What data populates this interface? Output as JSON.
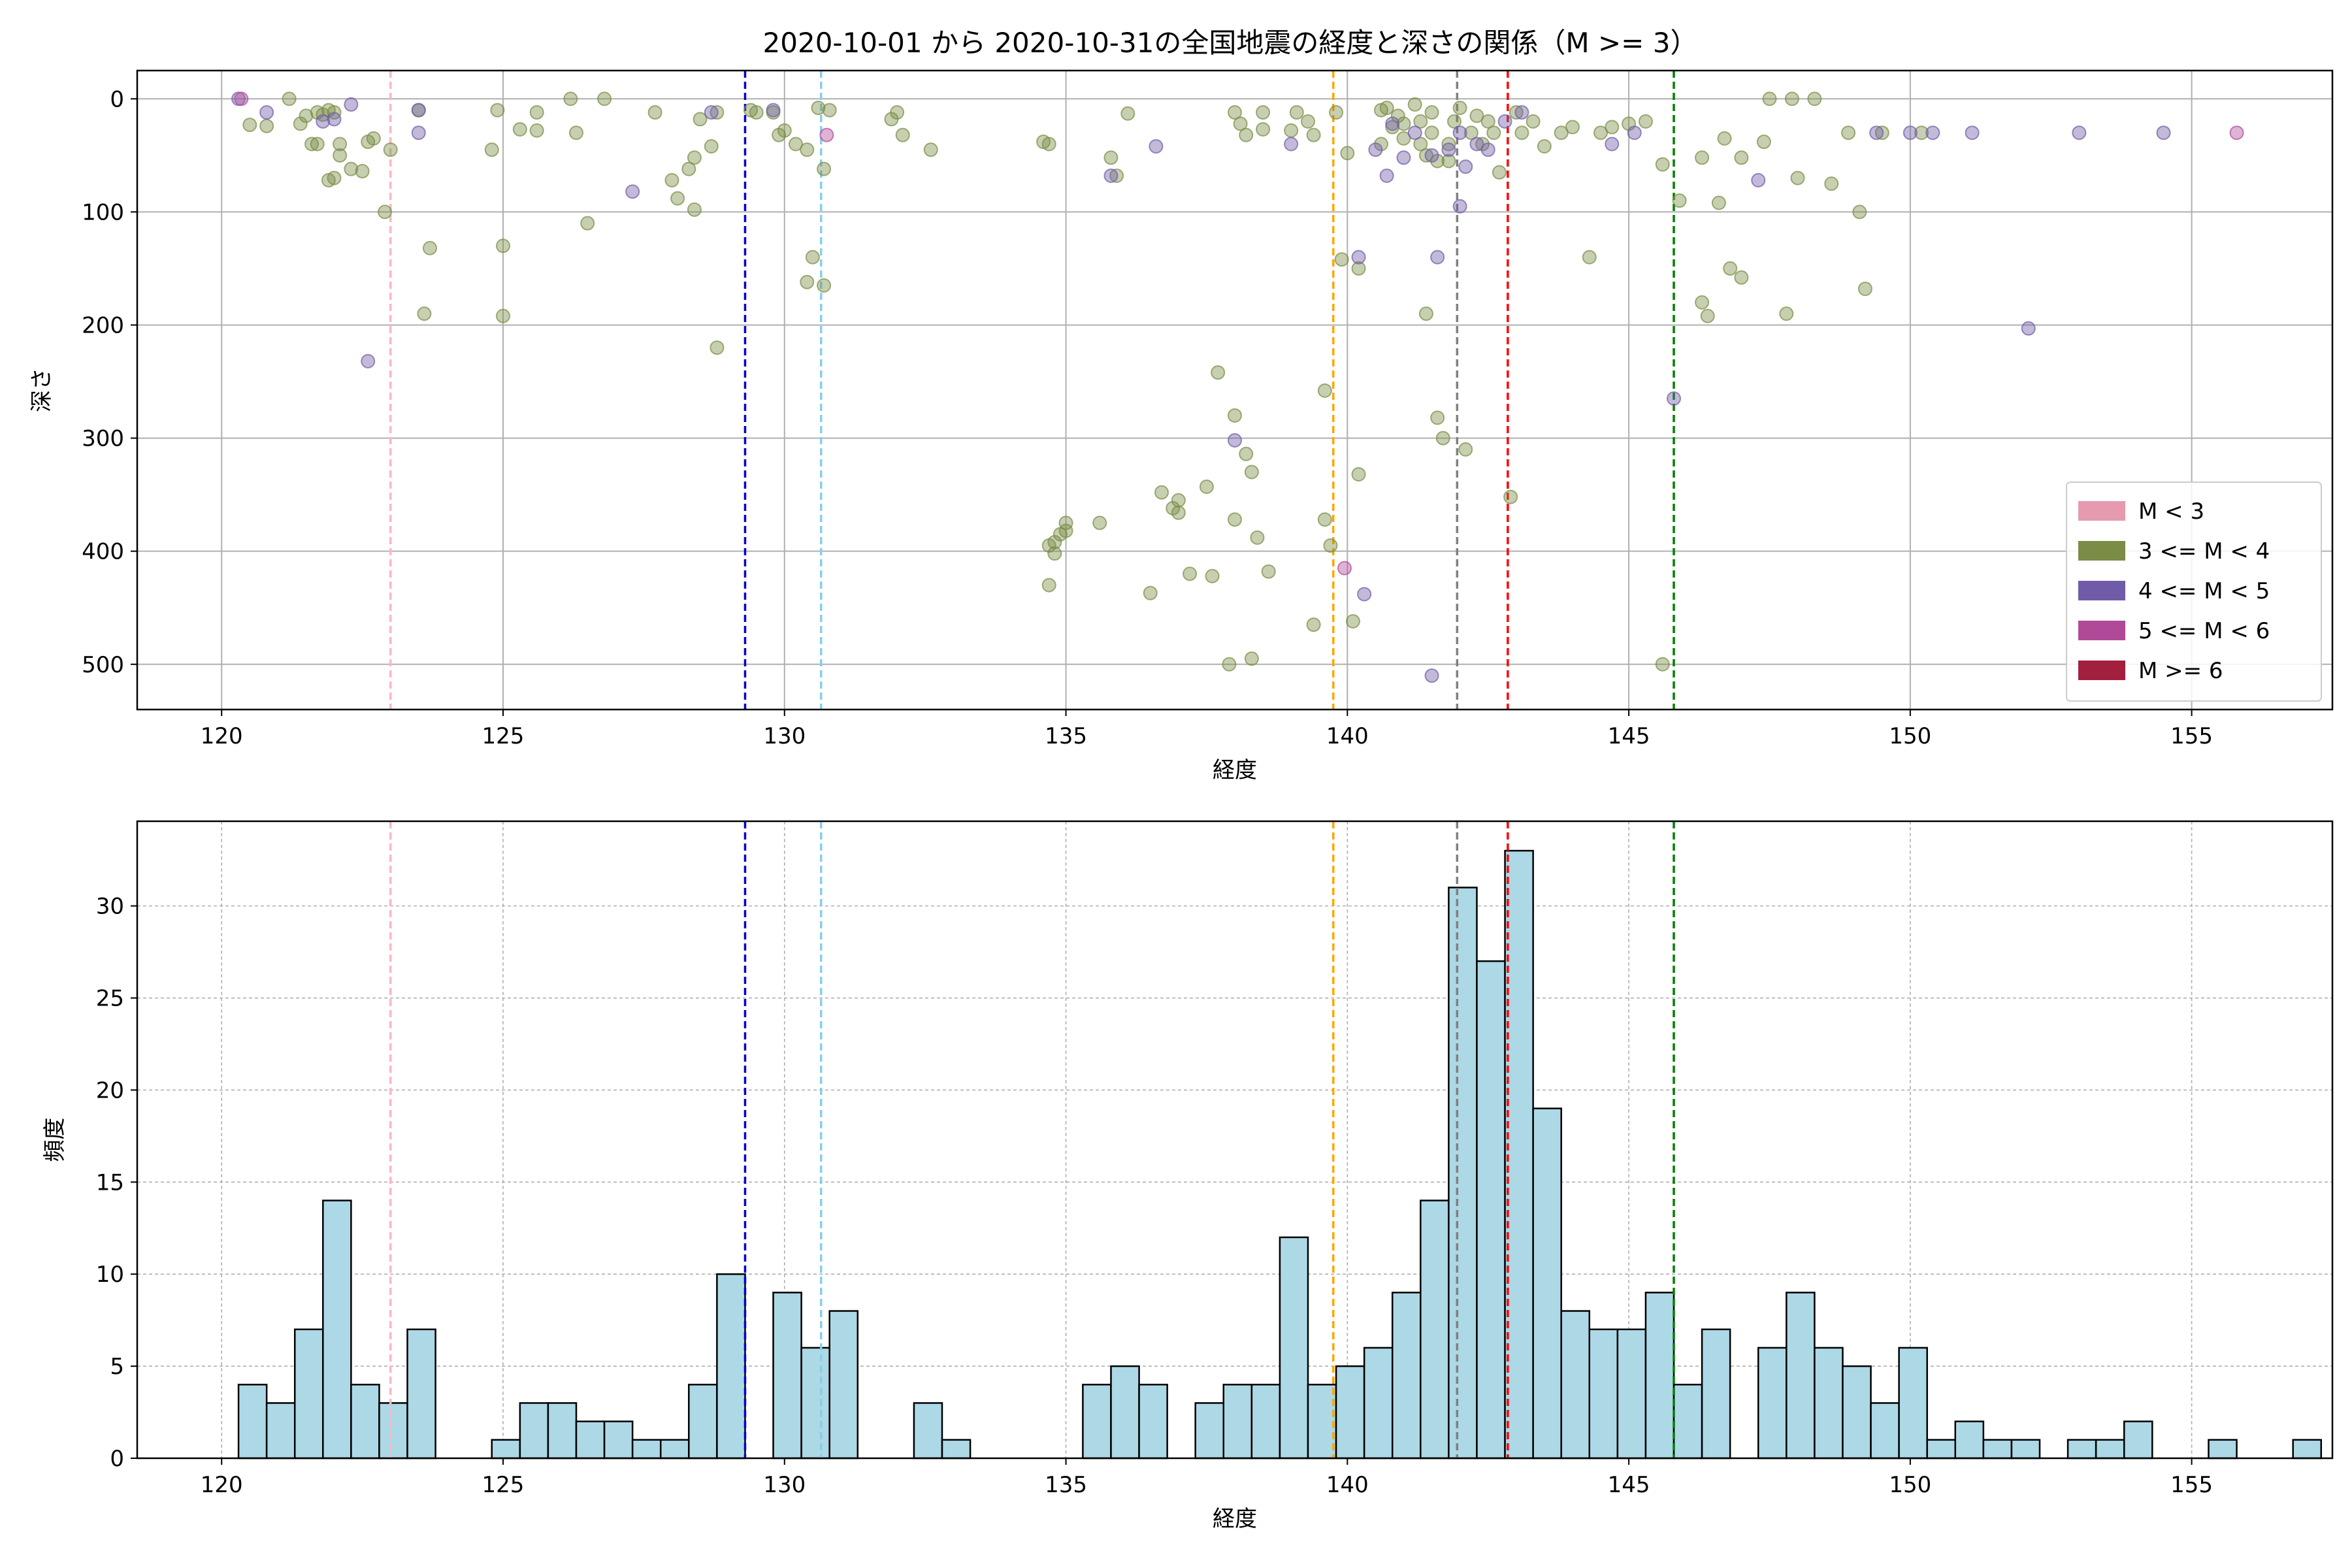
{
  "figure": {
    "title": "2020-10-01 から 2020-10-31の全国地震の経度と深さの関係（M >= 3）"
  },
  "colors": {
    "m_lt3": "#e59ab0",
    "m3_4": "#7a8c45",
    "m4_5": "#6f5ba7",
    "m5_6": "#b04a98",
    "m6p": "#a31f3e",
    "hist_fill": "#add8e6",
    "grid": "#b0b0b0"
  },
  "chart_data": [
    {
      "type": "scatter",
      "xlabel": "経度",
      "ylabel": "深さ",
      "xlim": [
        118.5,
        157.5
      ],
      "ylim": [
        540,
        -25
      ],
      "y_inverted": true,
      "xticks": [
        120,
        125,
        130,
        135,
        140,
        145,
        150,
        155
      ],
      "yticks": [
        0,
        100,
        200,
        300,
        400,
        500
      ],
      "grid": "solid",
      "legend_position": "lower-right",
      "legend": [
        {
          "label": "M < 3",
          "color": "#e59ab0"
        },
        {
          "label": "3 <= M < 4",
          "color": "#7a8c45"
        },
        {
          "label": "4 <= M < 5",
          "color": "#6f5ba7"
        },
        {
          "label": "5 <= M < 6",
          "color": "#b04a98"
        },
        {
          "label": "M >= 6",
          "color": "#a31f3e"
        }
      ],
      "vlines": [
        {
          "x": 123.0,
          "color": "#ffb6c1"
        },
        {
          "x": 129.3,
          "color": "#0000cd"
        },
        {
          "x": 130.65,
          "color": "#87ceeb"
        },
        {
          "x": 139.75,
          "color": "#ffa500"
        },
        {
          "x": 141.95,
          "color": "#808080"
        },
        {
          "x": 142.85,
          "color": "#ff0000"
        },
        {
          "x": 145.8,
          "color": "#008000"
        }
      ],
      "series": [
        {
          "class": "3 <= M < 4",
          "color": "#7a8c45",
          "points": [
            [
              120.5,
              23
            ],
            [
              120.8,
              24
            ],
            [
              121.2,
              0
            ],
            [
              121.4,
              22
            ],
            [
              121.5,
              15
            ],
            [
              121.6,
              40
            ],
            [
              121.7,
              40
            ],
            [
              121.7,
              12
            ],
            [
              121.8,
              14
            ],
            [
              121.9,
              10
            ],
            [
              122.0,
              12
            ],
            [
              121.9,
              72
            ],
            [
              122.0,
              70
            ],
            [
              122.1,
              50
            ],
            [
              122.1,
              40
            ],
            [
              122.3,
              62
            ],
            [
              122.5,
              64
            ],
            [
              122.6,
              38
            ],
            [
              122.7,
              35
            ],
            [
              122.9,
              100
            ],
            [
              123.0,
              45
            ],
            [
              123.5,
              10
            ],
            [
              123.6,
              190
            ],
            [
              123.7,
              132
            ],
            [
              124.8,
              45
            ],
            [
              124.9,
              10
            ],
            [
              125.0,
              130
            ],
            [
              125.0,
              192
            ],
            [
              125.3,
              27
            ],
            [
              125.6,
              12
            ],
            [
              125.6,
              28
            ],
            [
              126.2,
              0
            ],
            [
              126.3,
              30
            ],
            [
              126.5,
              110
            ],
            [
              126.8,
              0
            ],
            [
              127.7,
              12
            ],
            [
              128.0,
              72
            ],
            [
              128.1,
              88
            ],
            [
              128.3,
              62
            ],
            [
              128.4,
              52
            ],
            [
              128.4,
              98
            ],
            [
              128.5,
              18
            ],
            [
              128.7,
              42
            ],
            [
              128.8,
              12
            ],
            [
              128.8,
              220
            ],
            [
              129.4,
              10
            ],
            [
              129.5,
              12
            ],
            [
              129.8,
              12
            ],
            [
              129.9,
              32
            ],
            [
              130.0,
              28
            ],
            [
              130.2,
              40
            ],
            [
              130.4,
              45
            ],
            [
              130.4,
              162
            ],
            [
              130.5,
              140
            ],
            [
              130.6,
              8
            ],
            [
              130.7,
              62
            ],
            [
              130.7,
              165
            ],
            [
              130.8,
              10
            ],
            [
              131.9,
              18
            ],
            [
              132.0,
              12
            ],
            [
              132.1,
              32
            ],
            [
              132.6,
              45
            ],
            [
              134.6,
              38
            ],
            [
              134.7,
              40
            ],
            [
              134.7,
              395
            ],
            [
              134.7,
              430
            ],
            [
              134.8,
              392
            ],
            [
              134.8,
              402
            ],
            [
              134.9,
              385
            ],
            [
              135.0,
              382
            ],
            [
              135.0,
              375
            ],
            [
              135.6,
              375
            ],
            [
              135.8,
              52
            ],
            [
              135.9,
              68
            ],
            [
              136.1,
              13
            ],
            [
              136.5,
              437
            ],
            [
              136.7,
              348
            ],
            [
              136.9,
              362
            ],
            [
              137.0,
              366
            ],
            [
              137.0,
              355
            ],
            [
              137.2,
              420
            ],
            [
              137.5,
              343
            ],
            [
              137.6,
              422
            ],
            [
              137.7,
              242
            ],
            [
              137.9,
              500
            ],
            [
              138.0,
              372
            ],
            [
              138.0,
              280
            ],
            [
              138.0,
              12
            ],
            [
              138.1,
              22
            ],
            [
              138.2,
              32
            ],
            [
              138.2,
              314
            ],
            [
              138.3,
              495
            ],
            [
              138.3,
              330
            ],
            [
              138.4,
              388
            ],
            [
              138.5,
              27
            ],
            [
              138.5,
              12
            ],
            [
              138.6,
              418
            ],
            [
              139.0,
              28
            ],
            [
              139.1,
              12
            ],
            [
              139.3,
              20
            ],
            [
              139.4,
              32
            ],
            [
              139.4,
              465
            ],
            [
              139.6,
              258
            ],
            [
              139.6,
              372
            ],
            [
              139.7,
              395
            ],
            [
              139.8,
              12
            ],
            [
              139.9,
              142
            ],
            [
              140.0,
              48
            ],
            [
              140.1,
              462
            ],
            [
              140.2,
              332
            ],
            [
              140.2,
              150
            ],
            [
              140.6,
              10
            ],
            [
              140.6,
              40
            ],
            [
              140.7,
              8
            ],
            [
              140.8,
              25
            ],
            [
              140.9,
              15
            ],
            [
              141.0,
              35
            ],
            [
              141.0,
              22
            ],
            [
              141.2,
              5
            ],
            [
              141.3,
              20
            ],
            [
              141.3,
              40
            ],
            [
              141.4,
              50
            ],
            [
              141.4,
              190
            ],
            [
              141.5,
              30
            ],
            [
              141.5,
              12
            ],
            [
              141.6,
              55
            ],
            [
              141.6,
              282
            ],
            [
              141.7,
              300
            ],
            [
              141.8,
              40
            ],
            [
              141.8,
              55
            ],
            [
              141.9,
              20
            ],
            [
              142.0,
              8
            ],
            [
              142.1,
              310
            ],
            [
              142.2,
              30
            ],
            [
              142.3,
              15
            ],
            [
              142.4,
              40
            ],
            [
              142.5,
              20
            ],
            [
              142.6,
              30
            ],
            [
              142.7,
              65
            ],
            [
              142.9,
              352
            ],
            [
              143.0,
              12
            ],
            [
              143.1,
              30
            ],
            [
              143.3,
              20
            ],
            [
              143.5,
              42
            ],
            [
              143.8,
              30
            ],
            [
              144.0,
              25
            ],
            [
              144.3,
              140
            ],
            [
              144.5,
              30
            ],
            [
              144.7,
              25
            ],
            [
              145.0,
              22
            ],
            [
              145.3,
              20
            ],
            [
              145.6,
              58
            ],
            [
              145.9,
              90
            ],
            [
              145.6,
              500
            ],
            [
              146.3,
              52
            ],
            [
              146.3,
              180
            ],
            [
              146.4,
              192
            ],
            [
              146.6,
              92
            ],
            [
              146.7,
              35
            ],
            [
              146.8,
              150
            ],
            [
              147.0,
              52
            ],
            [
              147.0,
              158
            ],
            [
              147.4,
              38
            ],
            [
              147.5,
              0
            ],
            [
              147.8,
              190
            ],
            [
              147.9,
              0
            ],
            [
              148.0,
              70
            ],
            [
              148.3,
              0
            ],
            [
              148.6,
              75
            ],
            [
              148.9,
              30
            ],
            [
              149.1,
              100
            ],
            [
              149.2,
              168
            ],
            [
              149.5,
              30
            ],
            [
              150.2,
              30
            ]
          ]
        },
        {
          "class": "4 <= M < 5",
          "color": "#6f5ba7",
          "points": [
            [
              120.3,
              0
            ],
            [
              120.8,
              12
            ],
            [
              121.8,
              20
            ],
            [
              122.0,
              18
            ],
            [
              122.3,
              5
            ],
            [
              122.6,
              232
            ],
            [
              123.5,
              10
            ],
            [
              123.5,
              30
            ],
            [
              127.3,
              82
            ],
            [
              128.7,
              12
            ],
            [
              129.8,
              10
            ],
            [
              135.8,
              68
            ],
            [
              136.6,
              42
            ],
            [
              138.0,
              302
            ],
            [
              139.0,
              40
            ],
            [
              140.2,
              140
            ],
            [
              140.3,
              438
            ],
            [
              140.5,
              45
            ],
            [
              140.7,
              68
            ],
            [
              140.8,
              22
            ],
            [
              141.0,
              52
            ],
            [
              141.2,
              30
            ],
            [
              141.5,
              50
            ],
            [
              141.6,
              140
            ],
            [
              141.8,
              45
            ],
            [
              142.0,
              30
            ],
            [
              142.0,
              95
            ],
            [
              142.1,
              60
            ],
            [
              142.3,
              40
            ],
            [
              142.5,
              45
            ],
            [
              142.8,
              20
            ],
            [
              143.1,
              12
            ],
            [
              144.7,
              40
            ],
            [
              145.1,
              30
            ],
            [
              145.8,
              265
            ],
            [
              147.3,
              72
            ],
            [
              149.4,
              30
            ],
            [
              150.0,
              30
            ],
            [
              150.4,
              30
            ],
            [
              151.1,
              30
            ],
            [
              152.1,
              203
            ],
            [
              153.0,
              30
            ],
            [
              154.5,
              30
            ],
            [
              141.5,
              510
            ]
          ]
        },
        {
          "class": "5 <= M < 6",
          "color": "#b04a98",
          "points": [
            [
              120.35,
              0
            ],
            [
              130.75,
              32
            ],
            [
              139.95,
              415
            ],
            [
              155.8,
              30
            ]
          ]
        },
        {
          "class": "M >= 6",
          "color": "#a31f3e",
          "points": []
        }
      ]
    },
    {
      "type": "bar",
      "xlabel": "経度",
      "ylabel": "頻度",
      "xlim": [
        118.5,
        157.5
      ],
      "ylim": [
        0,
        34.6
      ],
      "xticks": [
        120,
        125,
        130,
        135,
        140,
        145,
        150,
        155
      ],
      "yticks": [
        0,
        5,
        10,
        15,
        20,
        25,
        30
      ],
      "grid": "dashed",
      "vlines": [
        {
          "x": 123.0,
          "color": "#ffb6c1"
        },
        {
          "x": 129.3,
          "color": "#0000cd"
        },
        {
          "x": 130.65,
          "color": "#87ceeb"
        },
        {
          "x": 139.75,
          "color": "#ffa500"
        },
        {
          "x": 141.95,
          "color": "#808080"
        },
        {
          "x": 142.85,
          "color": "#ff0000"
        },
        {
          "x": 145.8,
          "color": "#008000"
        }
      ],
      "bin_start": 120.3,
      "bin_width": 0.5,
      "values": [
        4,
        3,
        7,
        14,
        4,
        3,
        7,
        0,
        0,
        1,
        3,
        3,
        2,
        2,
        1,
        1,
        4,
        10,
        0,
        9,
        6,
        8,
        0,
        0,
        3,
        1,
        0,
        0,
        0,
        0,
        4,
        5,
        4,
        0,
        3,
        4,
        4,
        12,
        4,
        5,
        6,
        9,
        14,
        31,
        27,
        33,
        19,
        8,
        7,
        7,
        9,
        4,
        7,
        0,
        6,
        9,
        6,
        5,
        3,
        6,
        1,
        2,
        1,
        1,
        0,
        1,
        1,
        2,
        0,
        0,
        1,
        0,
        0,
        1
      ]
    }
  ]
}
